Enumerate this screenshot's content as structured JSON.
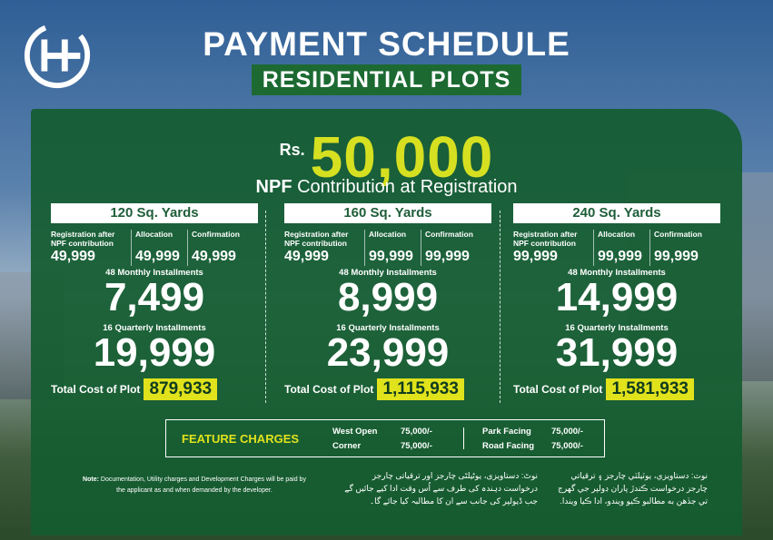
{
  "header": {
    "title": "PAYMENT SCHEDULE",
    "subtitle": "RESIDENTIAL PLOTS"
  },
  "hero": {
    "currency": "Rs.",
    "amount": "50,000",
    "caption_bold": "NPF",
    "caption_rest": " Contribution at Registration"
  },
  "labels": {
    "registration": "Registration after NPF contribution",
    "allocation": "Allocation",
    "confirmation": "Confirmation",
    "monthly": "48 Monthly Installments",
    "quarterly": "16 Quarterly Installments",
    "total": "Total Cost of Plot"
  },
  "plans": [
    {
      "size": "120 Sq. Yards",
      "registration": "49,999",
      "allocation": "49,999",
      "confirmation": "49,999",
      "monthly": "7,499",
      "quarterly": "19,999",
      "total": "879,933"
    },
    {
      "size": "160 Sq. Yards",
      "registration": "49,999",
      "allocation": "99,999",
      "confirmation": "99,999",
      "monthly": "8,999",
      "quarterly": "23,999",
      "total": "1,115,933"
    },
    {
      "size": "240 Sq. Yards",
      "registration": "99,999",
      "allocation": "99,999",
      "confirmation": "99,999",
      "monthly": "14,999",
      "quarterly": "31,999",
      "total": "1,581,933"
    }
  ],
  "feature_charges": {
    "heading": "FEATURE CHARGES",
    "items": [
      {
        "name": "West Open",
        "value": "75,000/-"
      },
      {
        "name": "Corner",
        "value": "75,000/-"
      },
      {
        "name": "Park Facing",
        "value": "75,000/-"
      },
      {
        "name": "Road Facing",
        "value": "75,000/-"
      }
    ]
  },
  "notes": {
    "english_bold": "Note:",
    "english": " Documentation, Utility charges and Development Charges will be paid by the applicant as and when demanded by the developer.",
    "urdu": "نوٹ: دستاویزی، یوٹیلٹی چارجز اور ترقیاتی چارجز درخواست دہندہ کی طرف سے اُس وقت ادا کیے جائیں گے جب ڈیولپر کی جانب سے ان کا مطالبہ کیا جائے گا۔",
    "sindhi": "نوٽ: دستاويزي، يوٽيلٽي چارجز ۽ ترقياتي چارجز درخواست ڪندڙ پاران ڊولپر جي گهرج تي جڏهن به مطالبو ڪيو ويندو، ادا ڪيا ويندا."
  },
  "colors": {
    "panel": "#145c30",
    "accent_yellow": "#d6e021",
    "subtitle_bg": "#1c6a32"
  }
}
